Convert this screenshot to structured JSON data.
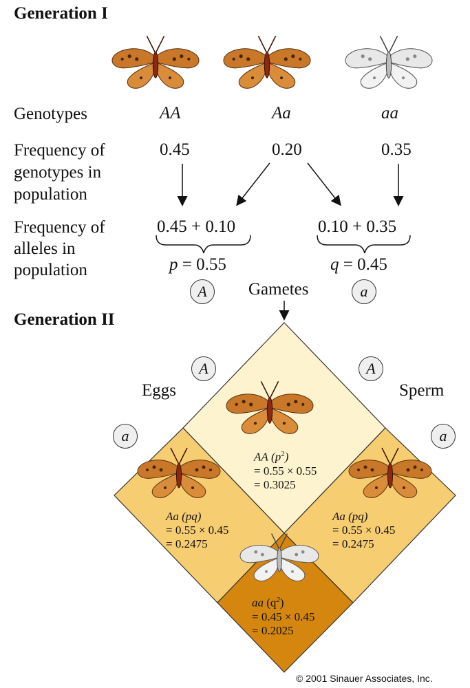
{
  "gen1": {
    "title": "Generation I",
    "genotypes_label": "Genotypes",
    "genotypes": [
      "AA",
      "Aa",
      "aa"
    ],
    "freq_genotype_label": [
      "Frequency of",
      "genotypes in",
      "population"
    ],
    "genotype_freqs": [
      "0.45",
      "0.20",
      "0.35"
    ],
    "freq_allele_label": [
      "Frequency of",
      "alleles in",
      "population"
    ],
    "allele_sums": [
      "0.45 + 0.10",
      "0.10 + 0.35"
    ],
    "p_value": "= 0.55",
    "q_value": "= 0.45",
    "p_symbol": "p",
    "q_symbol": "q",
    "allele_A": "A",
    "allele_a": "a",
    "gametes": "Gametes"
  },
  "gen2": {
    "title": "Generation II",
    "eggs": "Eggs",
    "sperm": "Sperm",
    "allele_A": "A",
    "allele_a": "a",
    "cells": {
      "AA": {
        "name": "AA",
        "term": "(p",
        "sup": "2",
        "close": ")",
        "eq1": "= 0.55 × 0.55",
        "eq2": "= 0.3025"
      },
      "Aa_left": {
        "name": "Aa",
        "term": "(pq)",
        "eq1": "= 0.55 × 0.45",
        "eq2": "= 0.2475"
      },
      "Aa_right": {
        "name": "Aa",
        "term": "(pq)",
        "eq1": "= 0.55 × 0.45",
        "eq2": "= 0.2475"
      },
      "aa": {
        "name": "aa",
        "term": "(q",
        "sup": "2",
        "close": ")",
        "eq1": "= 0.45 × 0.45",
        "eq2": "= 0.2025"
      }
    }
  },
  "colors": {
    "aa_cell": "#d4860f",
    "Aa_cell": "#f7cd72",
    "AA_cell": "#fdf3cf",
    "butterfly_orange": "#c9782a",
    "butterfly_white": "#e6e6e6"
  },
  "credit": "© 2001 Sinauer Associates, Inc."
}
